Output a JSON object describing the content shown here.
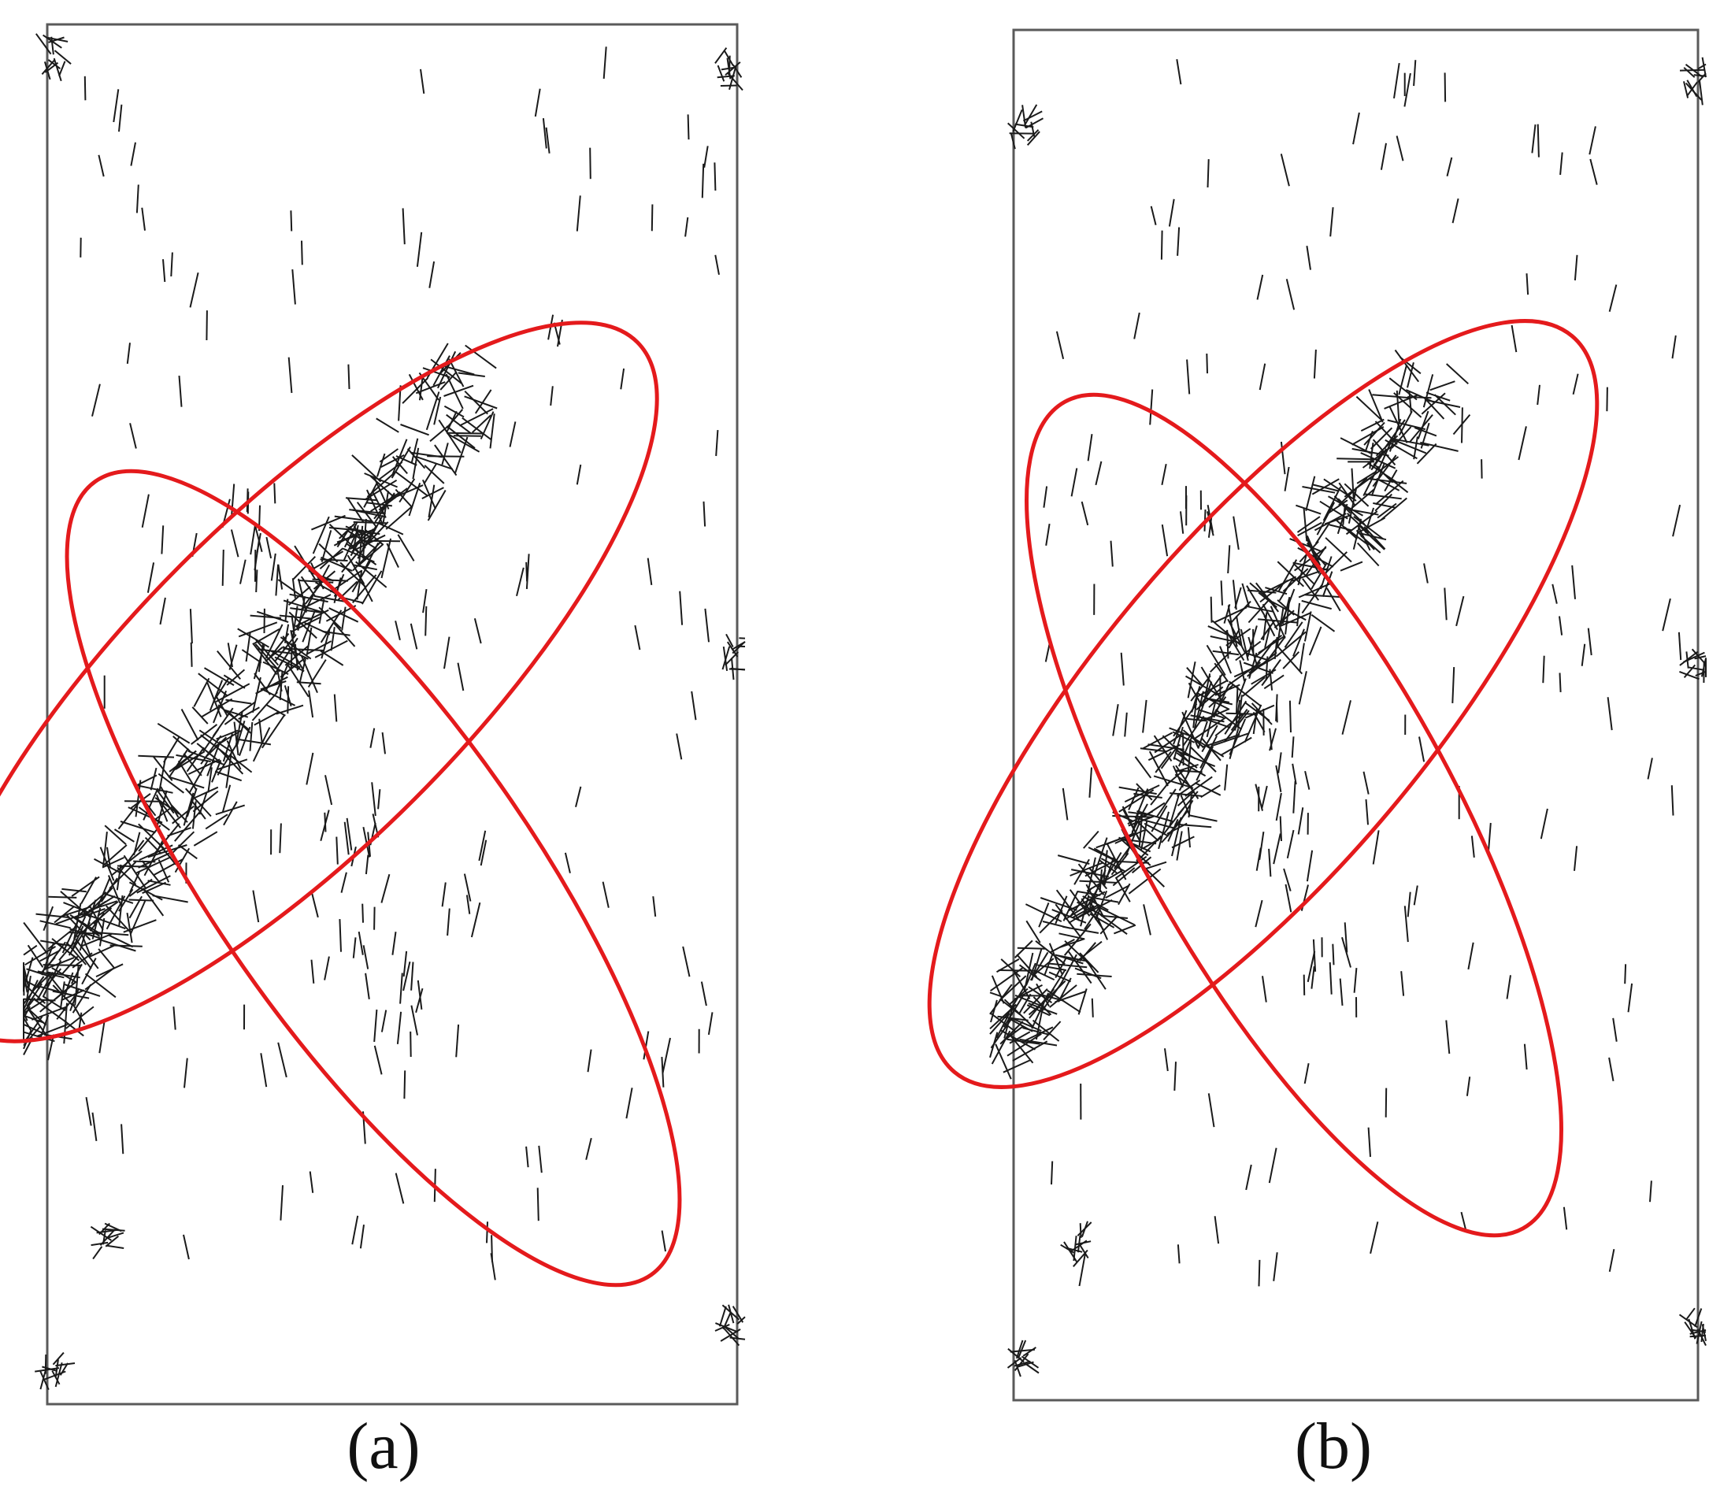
{
  "colors": {
    "frame": "#5a5a5a",
    "crack": "#1a1a1a",
    "ellipse": "#e41a1c",
    "background": "#ffffff"
  },
  "panels": [
    {
      "id": "a",
      "caption": "(a)"
    },
    {
      "id": "b",
      "caption": "(b)"
    }
  ]
}
